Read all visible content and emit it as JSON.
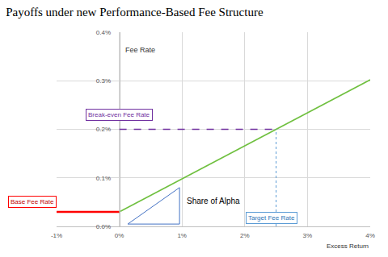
{
  "chart_data": {
    "type": "line",
    "title": "Payoffs under new Performance-Based Fee Structure",
    "x_label": "Excess Return",
    "y_label": "Fee Rate",
    "series": [
      {
        "x": [
          -1,
          0
        ],
        "values": [
          0.03,
          0.03
        ],
        "color": "#ff0000"
      },
      {
        "x": [
          0,
          4
        ],
        "values": [
          0.03,
          0.302
        ],
        "color": "#70c040"
      }
    ],
    "break_even": {
      "x": 2.5,
      "y": 0.2
    },
    "annotations": [
      "Base Fee Rate",
      "Break-even Fee Rate",
      "Share of Alpha",
      "Target Fee Rate"
    ],
    "xlim": [
      -1,
      4
    ],
    "ylim": [
      0,
      0.4
    ],
    "xticks": [
      {
        "value": -1,
        "label": "-1%"
      },
      {
        "value": 0,
        "label": "0%"
      },
      {
        "value": 1,
        "label": "1%"
      },
      {
        "value": 2,
        "label": "2%"
      },
      {
        "value": 3,
        "label": "3%"
      },
      {
        "value": 4,
        "label": "4%"
      }
    ],
    "yticks": [
      {
        "value": 0,
        "label": "0.0%"
      },
      {
        "value": 0.1,
        "label": "0.1%"
      },
      {
        "value": 0.2,
        "label": "0.2%"
      },
      {
        "value": 0.3,
        "label": "0.3%"
      },
      {
        "value": 0.4,
        "label": "0.4%"
      }
    ],
    "grid": true
  }
}
